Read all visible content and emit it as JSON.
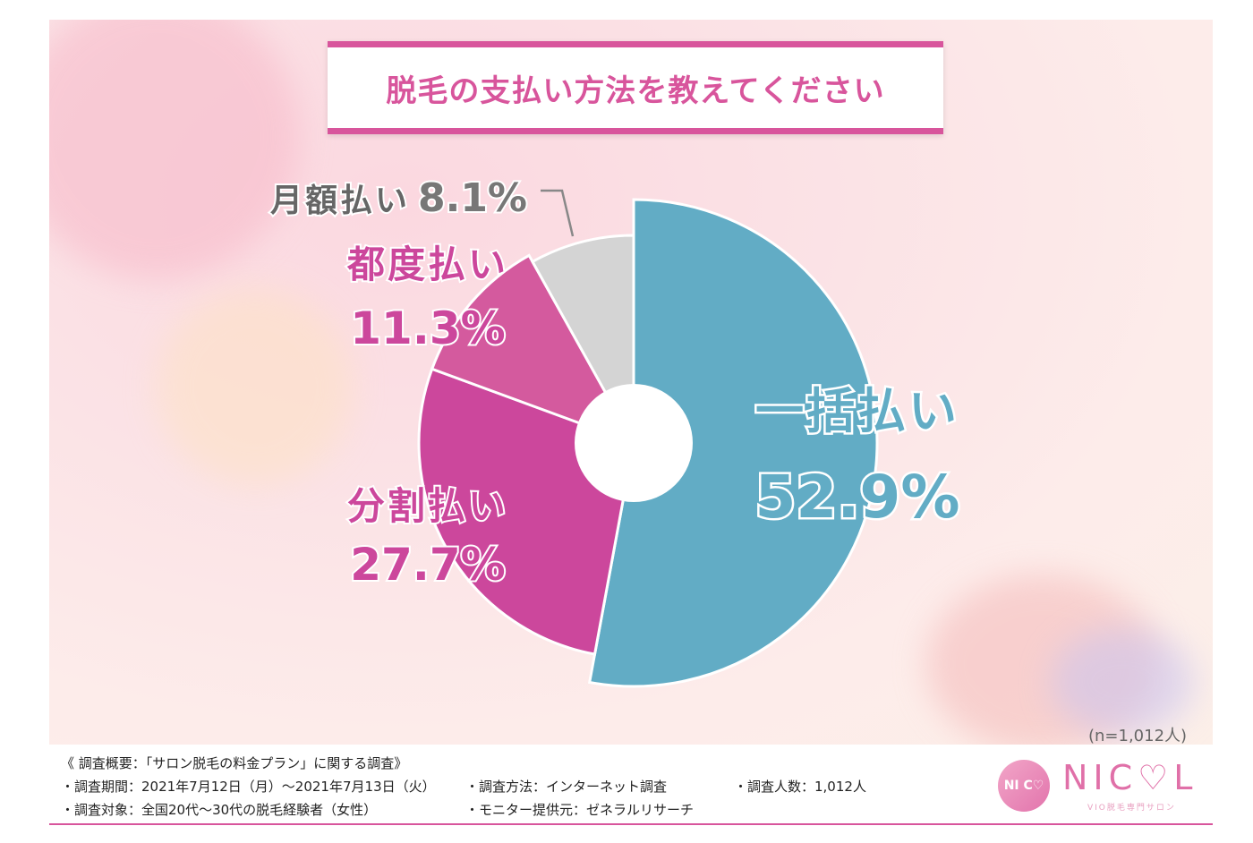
{
  "title": "脱毛の支払い方法を教えてください",
  "sample_size": "(n=1,012人)",
  "chart_data": {
    "type": "pie",
    "title": "脱毛の支払い方法を教えてください",
    "unit": "%",
    "slices": [
      {
        "label": "一括払い",
        "value": 52.9,
        "value_text": "52.9%",
        "color": "#62acc5"
      },
      {
        "label": "分割払い",
        "value": 27.7,
        "value_text": "27.7%",
        "color": "#cc479c"
      },
      {
        "label": "都度払い",
        "value": 11.3,
        "value_text": "11.3%",
        "color": "#d45a9e"
      },
      {
        "label": "月額払い",
        "value": 8.1,
        "value_text": "8.1%",
        "color": "#d4d4d4"
      }
    ]
  },
  "footer": {
    "overview": "《 調査概要：「サロン脱毛の料金プラン」に関する調査》",
    "period": "・調査期間：2021年7月12日（月）～2021年7月13日（火）",
    "method": "・調査方法：インターネット調査",
    "count": "・調査人数：1,012人",
    "target": "・調査対象：全国20代～30代の脱毛経験者（女性）",
    "provider": "・モニター提供元：ゼネラルリサーチ"
  },
  "logo": {
    "badge": "NI C♡",
    "name": "NIC♡L",
    "tagline": "VIO脱毛専門サロン"
  }
}
